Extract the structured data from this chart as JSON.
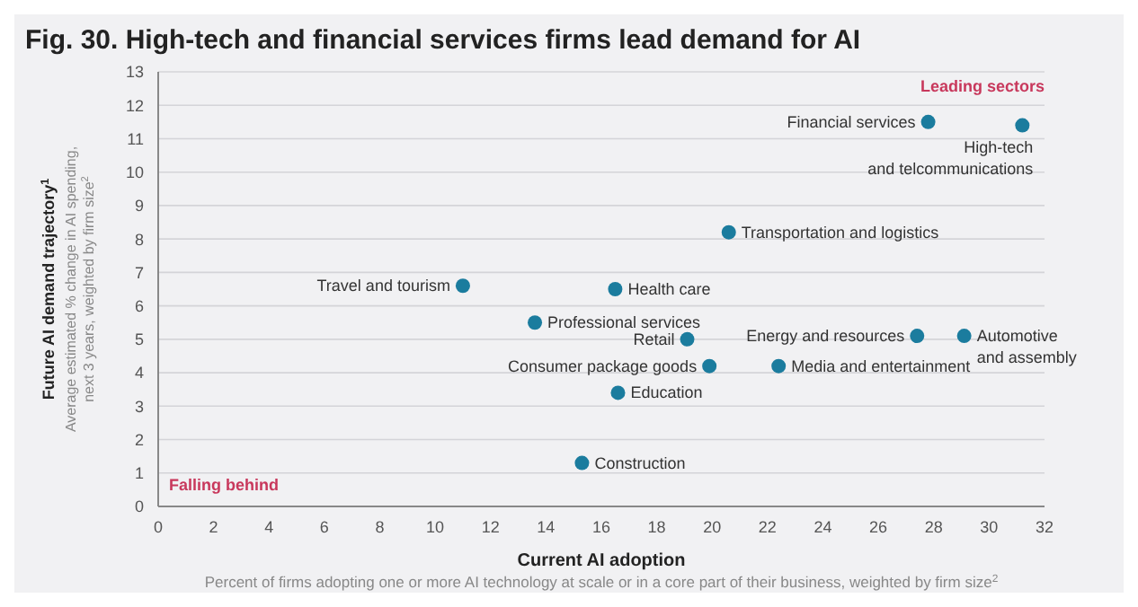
{
  "chart_data": {
    "type": "scatter",
    "title": "Fig. 30. High-tech and financial services firms lead demand for AI",
    "xlabel": "Current AI adoption",
    "ylabel": "Future AI demand trajectory$^{1}$",
    "x": [
      27.8,
      31.2,
      20.6,
      11.0,
      16.5,
      13.6,
      19.1,
      27.4,
      29.1,
      19.9,
      22.4,
      16.6,
      15.3
    ],
    "series": [
      {
        "color": "#1b7c9e",
        "values": [
          11.5,
          11.4,
          8.2,
          6.6,
          6.5,
          5.5,
          5.0,
          5.1,
          5.1,
          4.2,
          4.2,
          3.4,
          1.3
        ]
      }
    ],
    "xlim": [
      0,
      32
    ],
    "xticks": [
      0,
      2,
      4,
      6,
      8,
      10,
      12,
      14,
      16,
      18,
      20,
      22,
      24,
      26,
      28,
      30,
      32
    ],
    "ylim": [
      0,
      13
    ],
    "yticks": [
      0,
      1,
      2,
      3,
      4,
      5,
      6,
      7,
      8,
      9,
      10,
      11,
      12,
      13
    ],
    "grid": "y",
    "marker": "circle",
    "annotations": [
      {
        "text": "Financial services",
        "x": 27.8,
        "y": 11.5
      },
      {
        "text": "High-tech\nand telcommunications",
        "x": 31.2,
        "y": 11.4
      },
      {
        "text": "Transportation and logistics",
        "x": 20.6,
        "y": 8.2
      },
      {
        "text": "Travel and tourism",
        "x": 11.0,
        "y": 6.6
      },
      {
        "text": "Health care",
        "x": 16.5,
        "y": 6.5
      },
      {
        "text": "Professional services",
        "x": 13.6,
        "y": 5.5
      },
      {
        "text": "Retail",
        "x": 19.1,
        "y": 5.0
      },
      {
        "text": "Energy and resources",
        "x": 27.4,
        "y": 5.1
      },
      {
        "text": "Automotive\nand assembly",
        "x": 29.1,
        "y": 5.1
      },
      {
        "text": "Consumer package goods",
        "x": 19.9,
        "y": 4.2
      },
      {
        "text": "Media and entertainment",
        "x": 22.4,
        "y": 4.2
      },
      {
        "text": "Education",
        "x": 16.6,
        "y": 3.4
      },
      {
        "text": "Construction",
        "x": 15.3,
        "y": 1.3
      },
      "Leading sectors",
      "Falling behind",
      "Average estimated % change in AI spending,\nnext 3 years, weighted by firm size$^{2}$",
      "Percent of firms adopting one or more AI technology at scale or in a core part of their business, weighted by firm size$^{2}$"
    ]
  }
}
